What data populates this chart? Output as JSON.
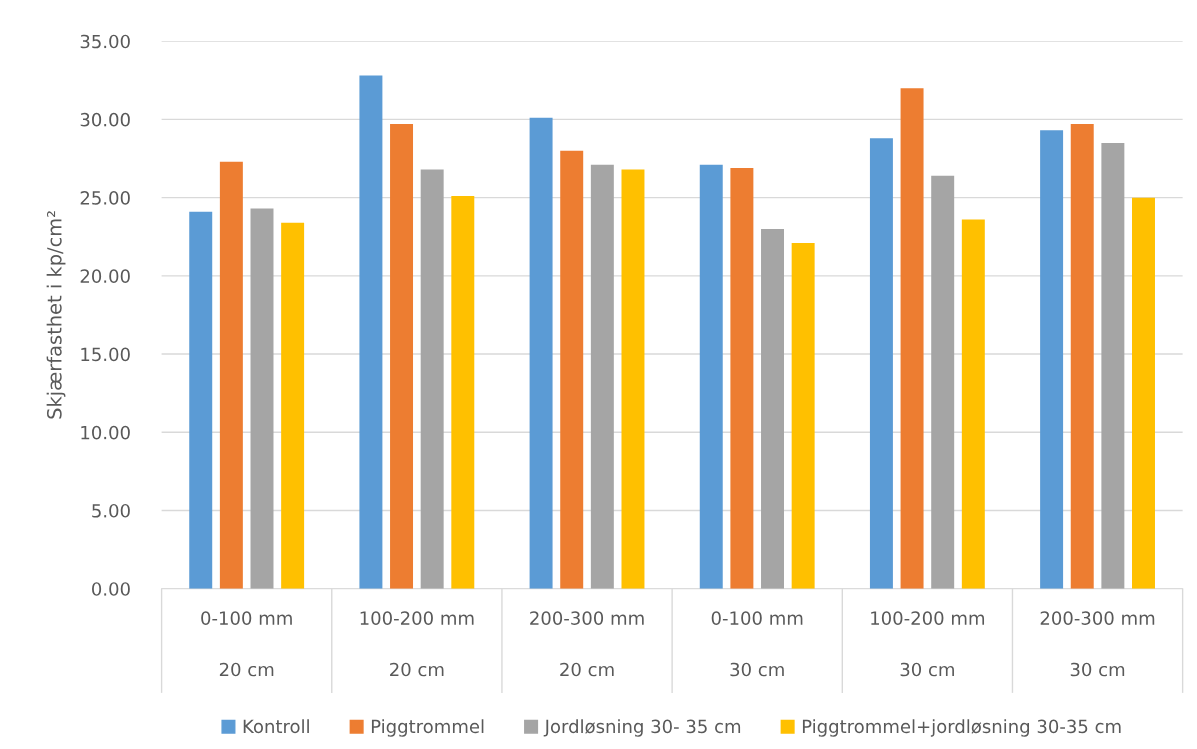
{
  "chart_data": {
    "type": "bar",
    "ylabel": "Skjærfasthet i kp/cm²",
    "categories": [
      "0-100 mm\n\n20 cm",
      "100-200 mm\n\n20 cm",
      "200-300 mm\n\n20 cm",
      "0-100 mm\n\n30 cm",
      "100-200 mm\n\n30 cm",
      "200-300 mm\n\n30 cm"
    ],
    "series": [
      {
        "name": "Kontroll",
        "color": "#5b9bd5",
        "values": [
          24.1,
          32.8,
          30.1,
          27.1,
          28.8,
          29.3
        ]
      },
      {
        "name": "Piggtrommel",
        "color": "#ed7d31",
        "values": [
          27.3,
          29.7,
          28.0,
          26.9,
          32.0,
          29.7
        ]
      },
      {
        "name": "Jordløsning 30- 35 cm",
        "color": "#a5a5a5",
        "values": [
          24.3,
          26.8,
          27.1,
          23.0,
          26.4,
          28.5
        ]
      },
      {
        "name": "Piggtrommel+jordløsning 30-35 cm",
        "color": "#ffc000",
        "values": [
          23.4,
          25.1,
          26.8,
          22.1,
          23.6,
          25.0
        ]
      }
    ],
    "ylim": [
      0,
      35
    ],
    "yticks": [
      {
        "value": 0,
        "label": "0.00"
      },
      {
        "value": 5,
        "label": "5.00"
      },
      {
        "value": 10,
        "label": "10.00"
      },
      {
        "value": 15,
        "label": "15.00"
      },
      {
        "value": 20,
        "label": "20.00"
      },
      {
        "value": 25,
        "label": "25.00"
      },
      {
        "value": 30,
        "label": "30.00"
      },
      {
        "value": 35,
        "label": "35.00"
      }
    ],
    "grid": "y",
    "legend": "bottom"
  }
}
